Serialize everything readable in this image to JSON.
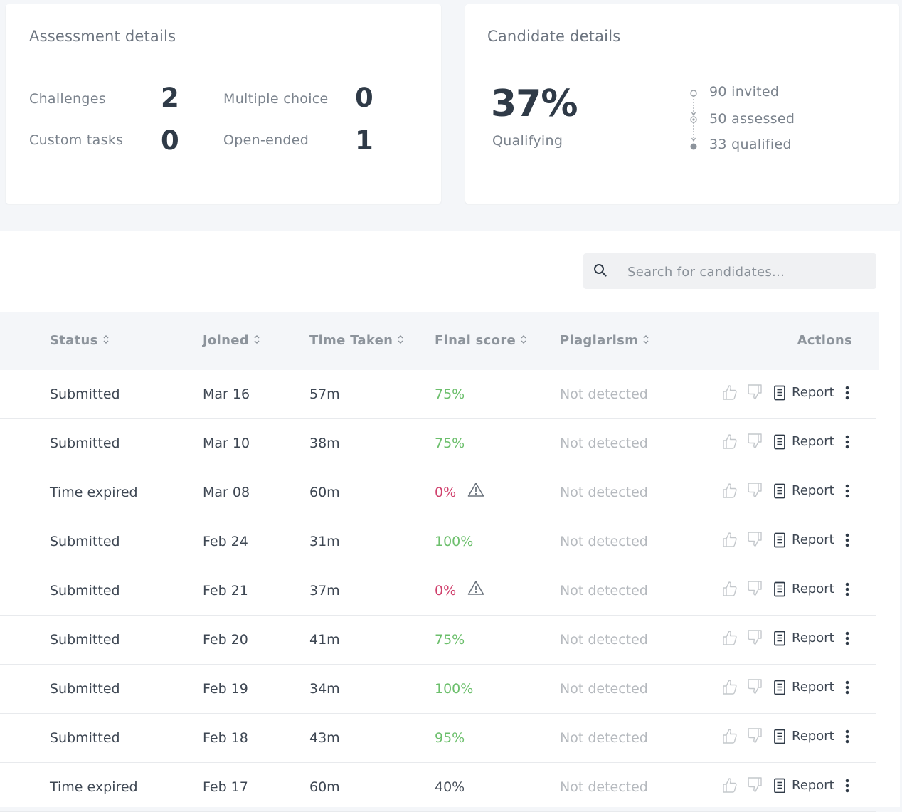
{
  "assessment": {
    "title": "Assessment details",
    "stats": [
      {
        "label": "Challenges",
        "value": "2"
      },
      {
        "label": "Multiple choice",
        "value": "0"
      },
      {
        "label": "Custom tasks",
        "value": "0"
      },
      {
        "label": "Open-ended",
        "value": "1"
      }
    ]
  },
  "candidate": {
    "title": "Candidate details",
    "qualifying_pct": "37%",
    "qualifying_label": "Qualifying",
    "funnel": [
      "90 invited",
      "50 assessed",
      "33 qualified"
    ]
  },
  "search": {
    "placeholder": "Search for candidates...",
    "value": ""
  },
  "table": {
    "columns": {
      "status": "Status",
      "joined": "Joined",
      "time": "Time Taken",
      "score": "Final score",
      "plagiarism": "Plagiarism",
      "actions": "Actions"
    },
    "report_label": "Report",
    "rows": [
      {
        "status": "Submitted",
        "joined": "Mar 16",
        "time": "57m",
        "score": "75%",
        "score_class": "good",
        "warning": false,
        "plagiarism": "Not detected"
      },
      {
        "status": "Submitted",
        "joined": "Mar 10",
        "time": "38m",
        "score": "75%",
        "score_class": "good",
        "warning": false,
        "plagiarism": "Not detected"
      },
      {
        "status": "Time expired",
        "joined": "Mar 08",
        "time": "60m",
        "score": "0%",
        "score_class": "bad",
        "warning": true,
        "plagiarism": "Not detected"
      },
      {
        "status": "Submitted",
        "joined": "Feb 24",
        "time": "31m",
        "score": "100%",
        "score_class": "good",
        "warning": false,
        "plagiarism": "Not detected"
      },
      {
        "status": "Submitted",
        "joined": "Feb 21",
        "time": "37m",
        "score": "0%",
        "score_class": "bad",
        "warning": true,
        "plagiarism": "Not detected"
      },
      {
        "status": "Submitted",
        "joined": "Feb 20",
        "time": "41m",
        "score": "75%",
        "score_class": "good",
        "warning": false,
        "plagiarism": "Not detected"
      },
      {
        "status": "Submitted",
        "joined": "Feb 19",
        "time": "34m",
        "score": "100%",
        "score_class": "good",
        "warning": false,
        "plagiarism": "Not detected"
      },
      {
        "status": "Submitted",
        "joined": "Feb 18",
        "time": "43m",
        "score": "95%",
        "score_class": "good",
        "warning": false,
        "plagiarism": "Not detected"
      },
      {
        "status": "Time expired",
        "joined": "Feb 17",
        "time": "60m",
        "score": "40%",
        "score_class": "neutral",
        "warning": false,
        "plagiarism": "Not detected"
      }
    ]
  },
  "colors": {
    "good": "#6cbf6c",
    "bad": "#d0416d",
    "neutral": "#4a525d",
    "muted": "#b5b9be"
  },
  "icons": [
    "search-icon",
    "sort-icon",
    "warning-icon",
    "thumbs-up-icon",
    "thumbs-down-icon",
    "report-icon",
    "kebab-menu-icon"
  ]
}
